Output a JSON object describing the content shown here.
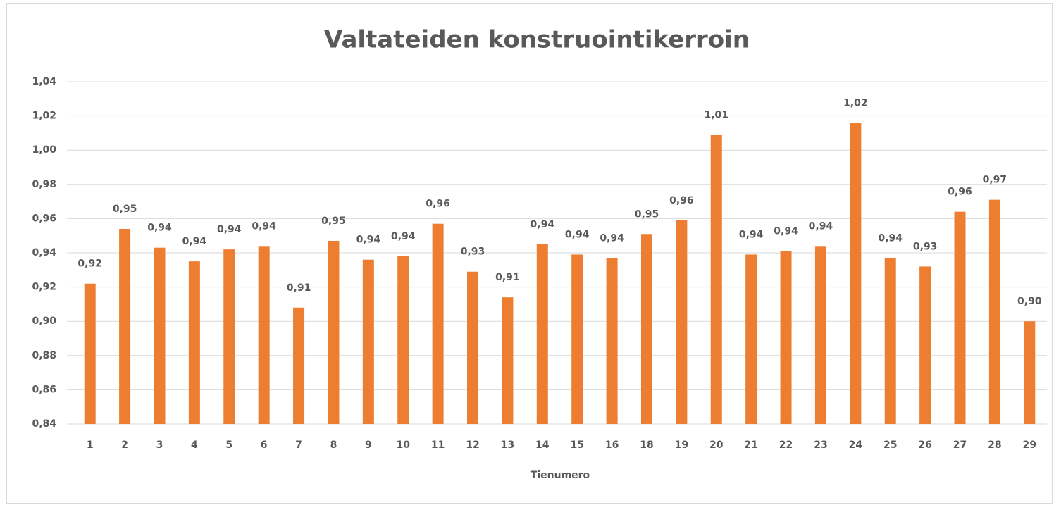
{
  "chart_data": {
    "type": "bar",
    "title": "Valtateiden konstruointikerroin",
    "x_label": "Tienumero",
    "categories": [
      "1",
      "2",
      "3",
      "4",
      "5",
      "6",
      "7",
      "8",
      "9",
      "10",
      "11",
      "12",
      "13",
      "14",
      "15",
      "16",
      "18",
      "19",
      "20",
      "21",
      "22",
      "23",
      "24",
      "25",
      "26",
      "27",
      "28",
      "29"
    ],
    "values": [
      0.922,
      0.954,
      0.943,
      0.935,
      0.942,
      0.944,
      0.908,
      0.947,
      0.936,
      0.938,
      0.957,
      0.929,
      0.914,
      0.945,
      0.939,
      0.937,
      0.951,
      0.959,
      1.009,
      0.939,
      0.941,
      0.944,
      1.016,
      0.937,
      0.932,
      0.964,
      0.971,
      0.9
    ],
    "value_labels": [
      "0,92",
      "0,95",
      "0,94",
      "0,94",
      "0,94",
      "0,94",
      "0,91",
      "0,95",
      "0,94",
      "0,94",
      "0,96",
      "0,93",
      "0,91",
      "0,94",
      "0,94",
      "0,94",
      "0,95",
      "0,96",
      "1,01",
      "0,94",
      "0,94",
      "0,94",
      "1,02",
      "0,94",
      "0,93",
      "0,96",
      "0,97",
      "0,90"
    ],
    "color": "#ed7d31",
    "ylim": [
      0.84,
      1.04
    ],
    "yticks": [
      {
        "value": 0.84,
        "label": "0,84"
      },
      {
        "value": 0.86,
        "label": "0,86"
      },
      {
        "value": 0.88,
        "label": "0,88"
      },
      {
        "value": 0.9,
        "label": "0,90"
      },
      {
        "value": 0.92,
        "label": "0,92"
      },
      {
        "value": 0.94,
        "label": "0,94"
      },
      {
        "value": 0.96,
        "label": "0,96"
      },
      {
        "value": 0.98,
        "label": "0,98"
      },
      {
        "value": 1.0,
        "label": "1,00"
      },
      {
        "value": 1.02,
        "label": "1,02"
      },
      {
        "value": 1.04,
        "label": "1,04"
      }
    ],
    "grid": true
  }
}
